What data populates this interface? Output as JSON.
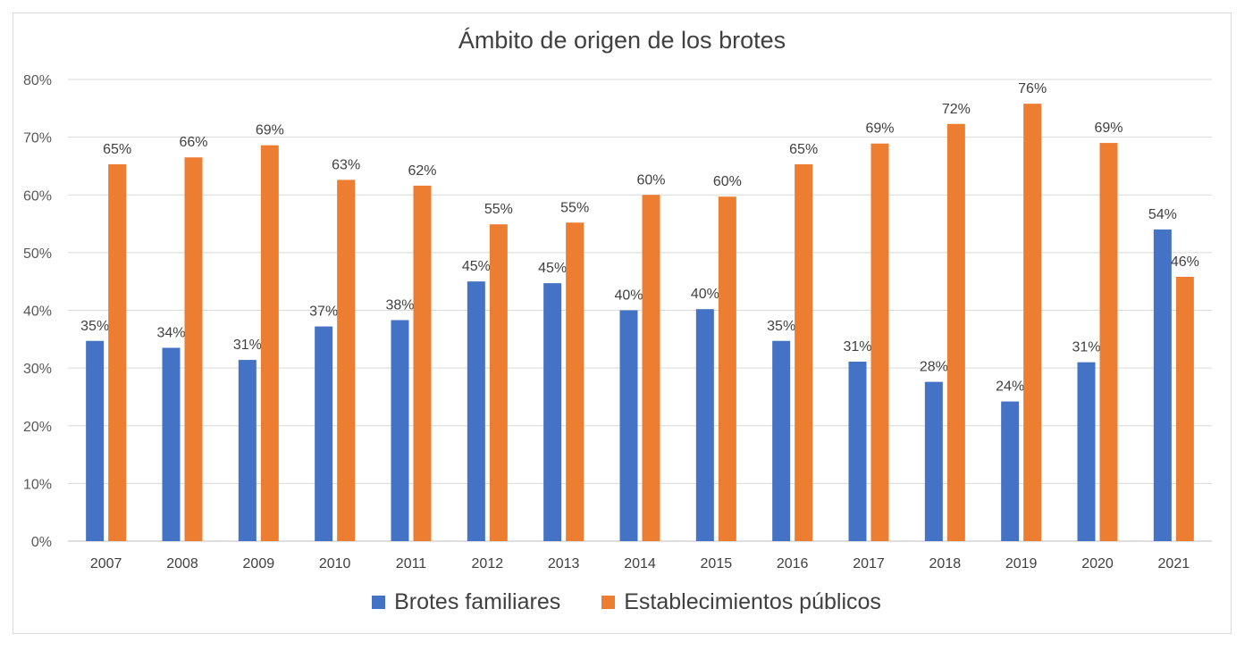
{
  "chart_data": {
    "type": "bar",
    "title": "Ámbito de origen de los brotes",
    "categories": [
      "2007",
      "2008",
      "2009",
      "2010",
      "2011",
      "2012",
      "2013",
      "2014",
      "2015",
      "2016",
      "2017",
      "2018",
      "2019",
      "2020",
      "2021"
    ],
    "series": [
      {
        "name": "Brotes familiares",
        "color": "#4472C4",
        "values": [
          34.7,
          33.5,
          31.4,
          37.2,
          38.3,
          45.0,
          44.7,
          40.0,
          40.2,
          34.7,
          31.1,
          27.6,
          24.2,
          31.0,
          54.0
        ],
        "labels": [
          "35%",
          "34%",
          "31%",
          "37%",
          "38%",
          "45%",
          "45%",
          "40%",
          "40%",
          "35%",
          "31%",
          "28%",
          "24%",
          "31%",
          "54%"
        ]
      },
      {
        "name": "Establecimientos públicos",
        "color": "#ED7D31",
        "values": [
          65.3,
          66.5,
          68.6,
          62.6,
          61.6,
          54.9,
          55.2,
          60.0,
          59.7,
          65.3,
          68.9,
          72.3,
          75.8,
          69.0,
          45.8
        ],
        "labels": [
          "65%",
          "66%",
          "69%",
          "63%",
          "62%",
          "55%",
          "55%",
          "60%",
          "60%",
          "65%",
          "69%",
          "72%",
          "76%",
          "69%",
          "46%"
        ]
      }
    ],
    "yticks": [
      "0%",
      "10%",
      "20%",
      "30%",
      "40%",
      "50%",
      "60%",
      "70%",
      "80%"
    ],
    "ylim": [
      0,
      80
    ],
    "grid": true,
    "legend_position": "bottom"
  }
}
